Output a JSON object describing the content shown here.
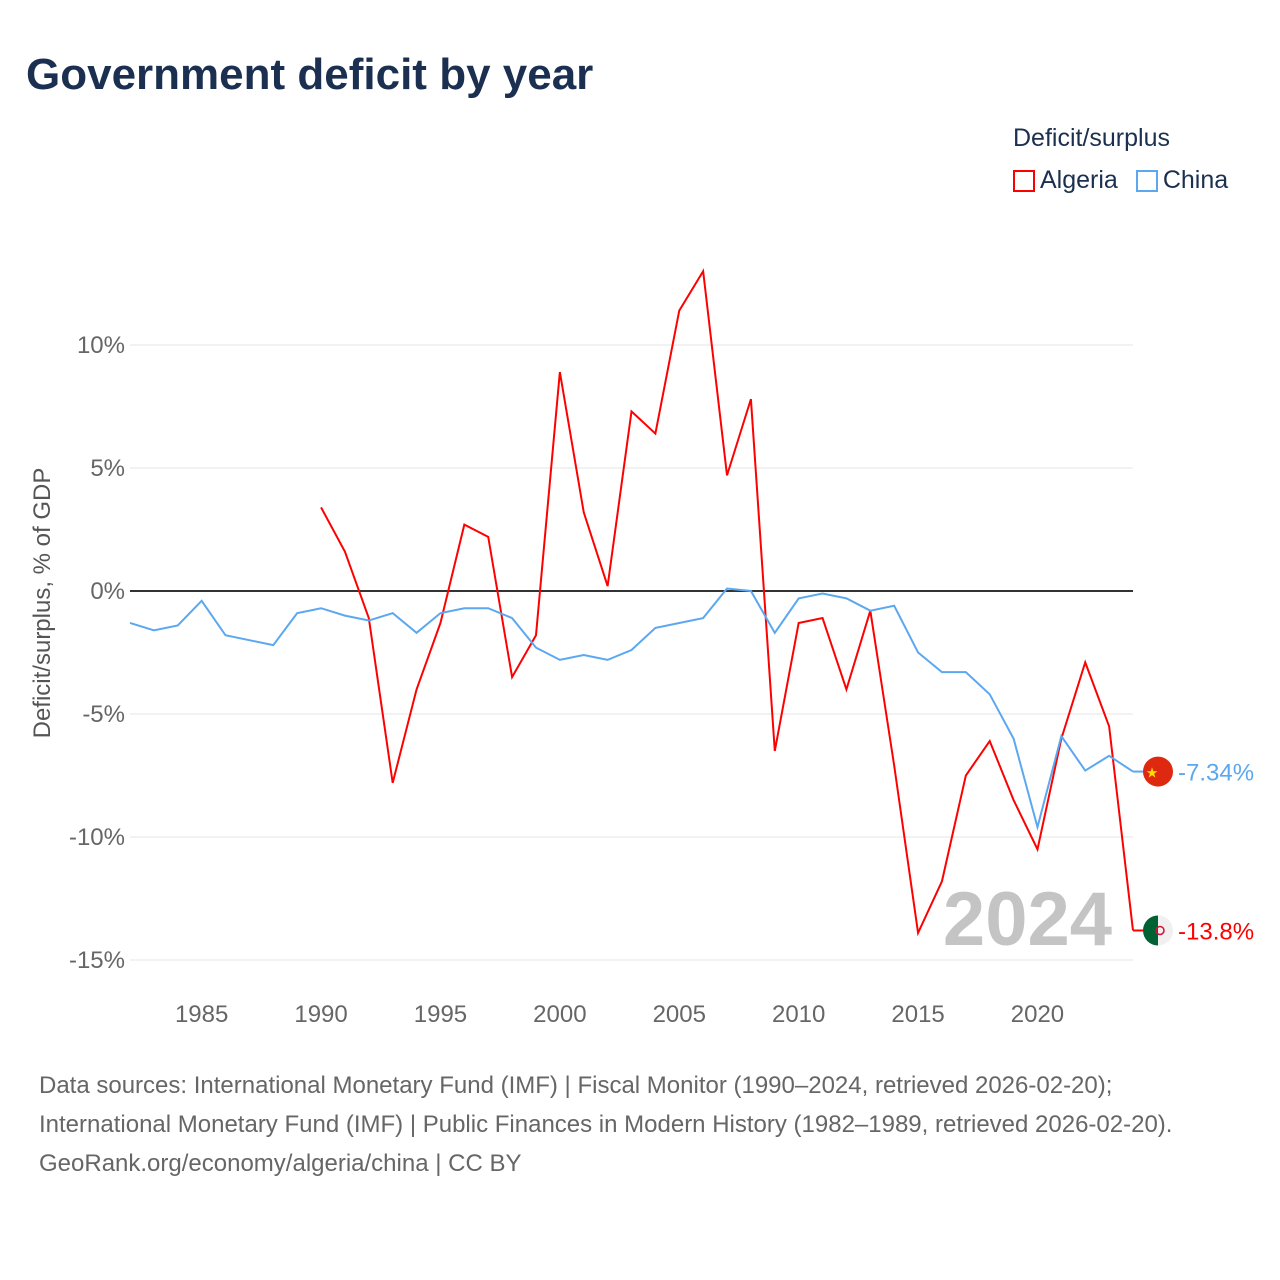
{
  "title": "Government deficit by year",
  "legend": {
    "title": "Deficit/surplus",
    "items": [
      {
        "name": "Algeria",
        "color": "#ff0000"
      },
      {
        "name": "China",
        "color": "#5ba8f0"
      }
    ]
  },
  "footer": {
    "sources": "Data sources: International Monetary Fund (IMF) | Fiscal Monitor (1990–2024, retrieved 2026-02-20); International Monetary Fund (IMF) | Public Finances in Modern History (1982–1989, retrieved 2026-02-20).",
    "credit": "GeoRank.org/economy/algeria/china | CC BY"
  },
  "chart_data": {
    "type": "line",
    "title": "Government deficit by year",
    "xlabel": "",
    "ylabel": "Deficit/surplus, % of GDP",
    "xlim": [
      1982,
      2024
    ],
    "ylim": [
      -15,
      10
    ],
    "xticks": [
      1985,
      1990,
      1995,
      2000,
      2005,
      2010,
      2015,
      2020
    ],
    "xtick_labels": [
      "1985",
      "1990",
      "1995",
      "2000",
      "2005",
      "2010",
      "2015",
      "2020"
    ],
    "yticks": [
      10,
      5,
      0,
      -5,
      -10,
      -15
    ],
    "ytick_labels": [
      "10%",
      "5%",
      "0%",
      "-5%",
      "-10%",
      "-15%"
    ],
    "year_label": "2024",
    "grid": true,
    "legend_position": "top-right",
    "series": [
      {
        "name": "Algeria",
        "color": "#ff0000",
        "end_label": "-13.8%",
        "x": [
          1990,
          1991,
          1992,
          1993,
          1994,
          1995,
          1996,
          1997,
          1998,
          1999,
          2000,
          2001,
          2002,
          2003,
          2004,
          2005,
          2006,
          2007,
          2008,
          2009,
          2010,
          2011,
          2012,
          2013,
          2014,
          2015,
          2016,
          2017,
          2018,
          2019,
          2020,
          2021,
          2022,
          2023,
          2024
        ],
        "values": [
          3.4,
          1.6,
          -1.1,
          -7.8,
          -4.0,
          -1.3,
          2.7,
          2.2,
          -3.5,
          -1.8,
          8.9,
          3.2,
          0.2,
          7.3,
          6.4,
          11.4,
          13.0,
          4.7,
          7.8,
          -6.5,
          -1.3,
          -1.1,
          -4.0,
          -0.8,
          -7.1,
          -13.9,
          -11.8,
          -7.5,
          -6.1,
          -8.5,
          -10.5,
          -6.0,
          -2.9,
          -5.5,
          -13.8
        ]
      },
      {
        "name": "China",
        "color": "#5ba8f0",
        "end_label": "-7.34%",
        "x": [
          1982,
          1983,
          1984,
          1985,
          1986,
          1987,
          1988,
          1989,
          1990,
          1991,
          1992,
          1993,
          1994,
          1995,
          1996,
          1997,
          1998,
          1999,
          2000,
          2001,
          2002,
          2003,
          2004,
          2005,
          2006,
          2007,
          2008,
          2009,
          2010,
          2011,
          2012,
          2013,
          2014,
          2015,
          2016,
          2017,
          2018,
          2019,
          2020,
          2021,
          2022,
          2023,
          2024
        ],
        "values": [
          -1.3,
          -1.6,
          -1.4,
          -0.4,
          -1.8,
          -2.0,
          -2.2,
          -0.9,
          -0.7,
          -1.0,
          -1.2,
          -0.9,
          -1.7,
          -0.9,
          -0.7,
          -0.7,
          -1.1,
          -2.3,
          -2.8,
          -2.6,
          -2.8,
          -2.4,
          -1.5,
          -1.3,
          -1.1,
          0.1,
          0.0,
          -1.7,
          -0.3,
          -0.1,
          -0.3,
          -0.8,
          -0.6,
          -2.5,
          -3.3,
          -3.3,
          -4.2,
          -6.0,
          -9.6,
          -5.9,
          -7.3,
          -6.7,
          -7.34
        ]
      }
    ]
  }
}
